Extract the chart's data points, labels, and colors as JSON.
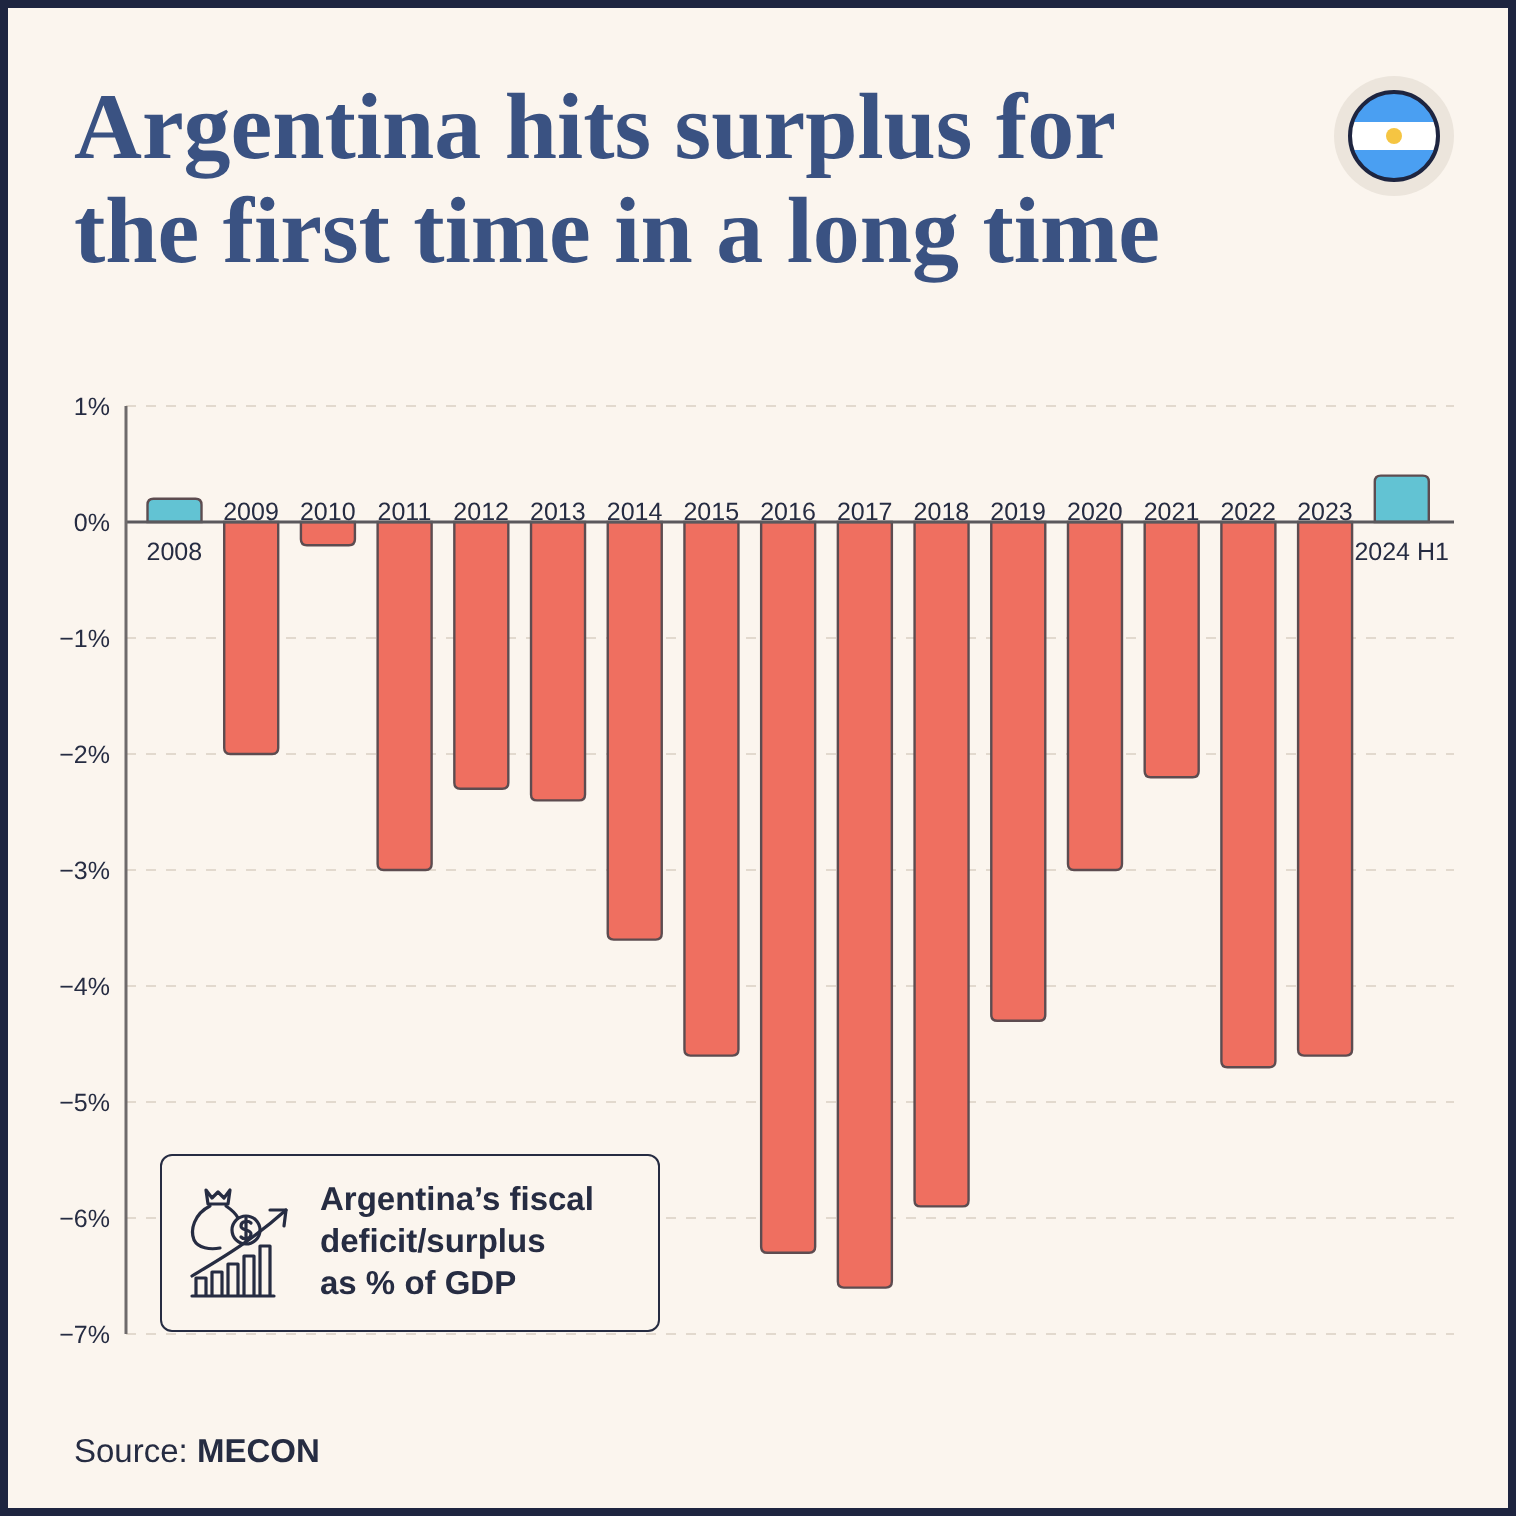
{
  "chart_data": {
    "type": "bar",
    "title": "Argentina hits surplus for the first time in a long time",
    "categories": [
      "2008",
      "2009",
      "2010",
      "2011",
      "2012",
      "2013",
      "2014",
      "2015",
      "2016",
      "2017",
      "2018",
      "2019",
      "2020",
      "2021",
      "2022",
      "2023",
      "2024 H1"
    ],
    "values": [
      0.2,
      -2.0,
      -0.2,
      -3.0,
      -2.3,
      -2.4,
      -3.6,
      -4.6,
      -6.3,
      -6.6,
      -5.9,
      -4.3,
      -3.0,
      -2.2,
      -4.7,
      -4.6,
      0.4
    ],
    "colors": [
      "#62c3d3",
      "#ef6f60",
      "#ef6f60",
      "#ef6f60",
      "#ef6f60",
      "#ef6f60",
      "#ef6f60",
      "#ef6f60",
      "#ef6f60",
      "#ef6f60",
      "#ef6f60",
      "#ef6f60",
      "#ef6f60",
      "#ef6f60",
      "#ef6f60",
      "#ef6f60",
      "#62c3d3"
    ],
    "ylim": [
      -7,
      1
    ],
    "yticks": [
      {
        "value": 1,
        "label": "1%"
      },
      {
        "value": 0,
        "label": "0%"
      },
      {
        "value": -1,
        "label": "−1%"
      },
      {
        "value": -2,
        "label": "−2%"
      },
      {
        "value": -3,
        "label": "−3%"
      },
      {
        "value": -4,
        "label": "−4%"
      },
      {
        "value": -5,
        "label": "−5%"
      },
      {
        "value": -6,
        "label": "−6%"
      },
      {
        "value": -7,
        "label": "−7%"
      }
    ],
    "grid": "y",
    "annotations": [
      "Argentina’s fiscal deficit/surplus as % of GDP",
      "Source: MECON"
    ]
  }
}
